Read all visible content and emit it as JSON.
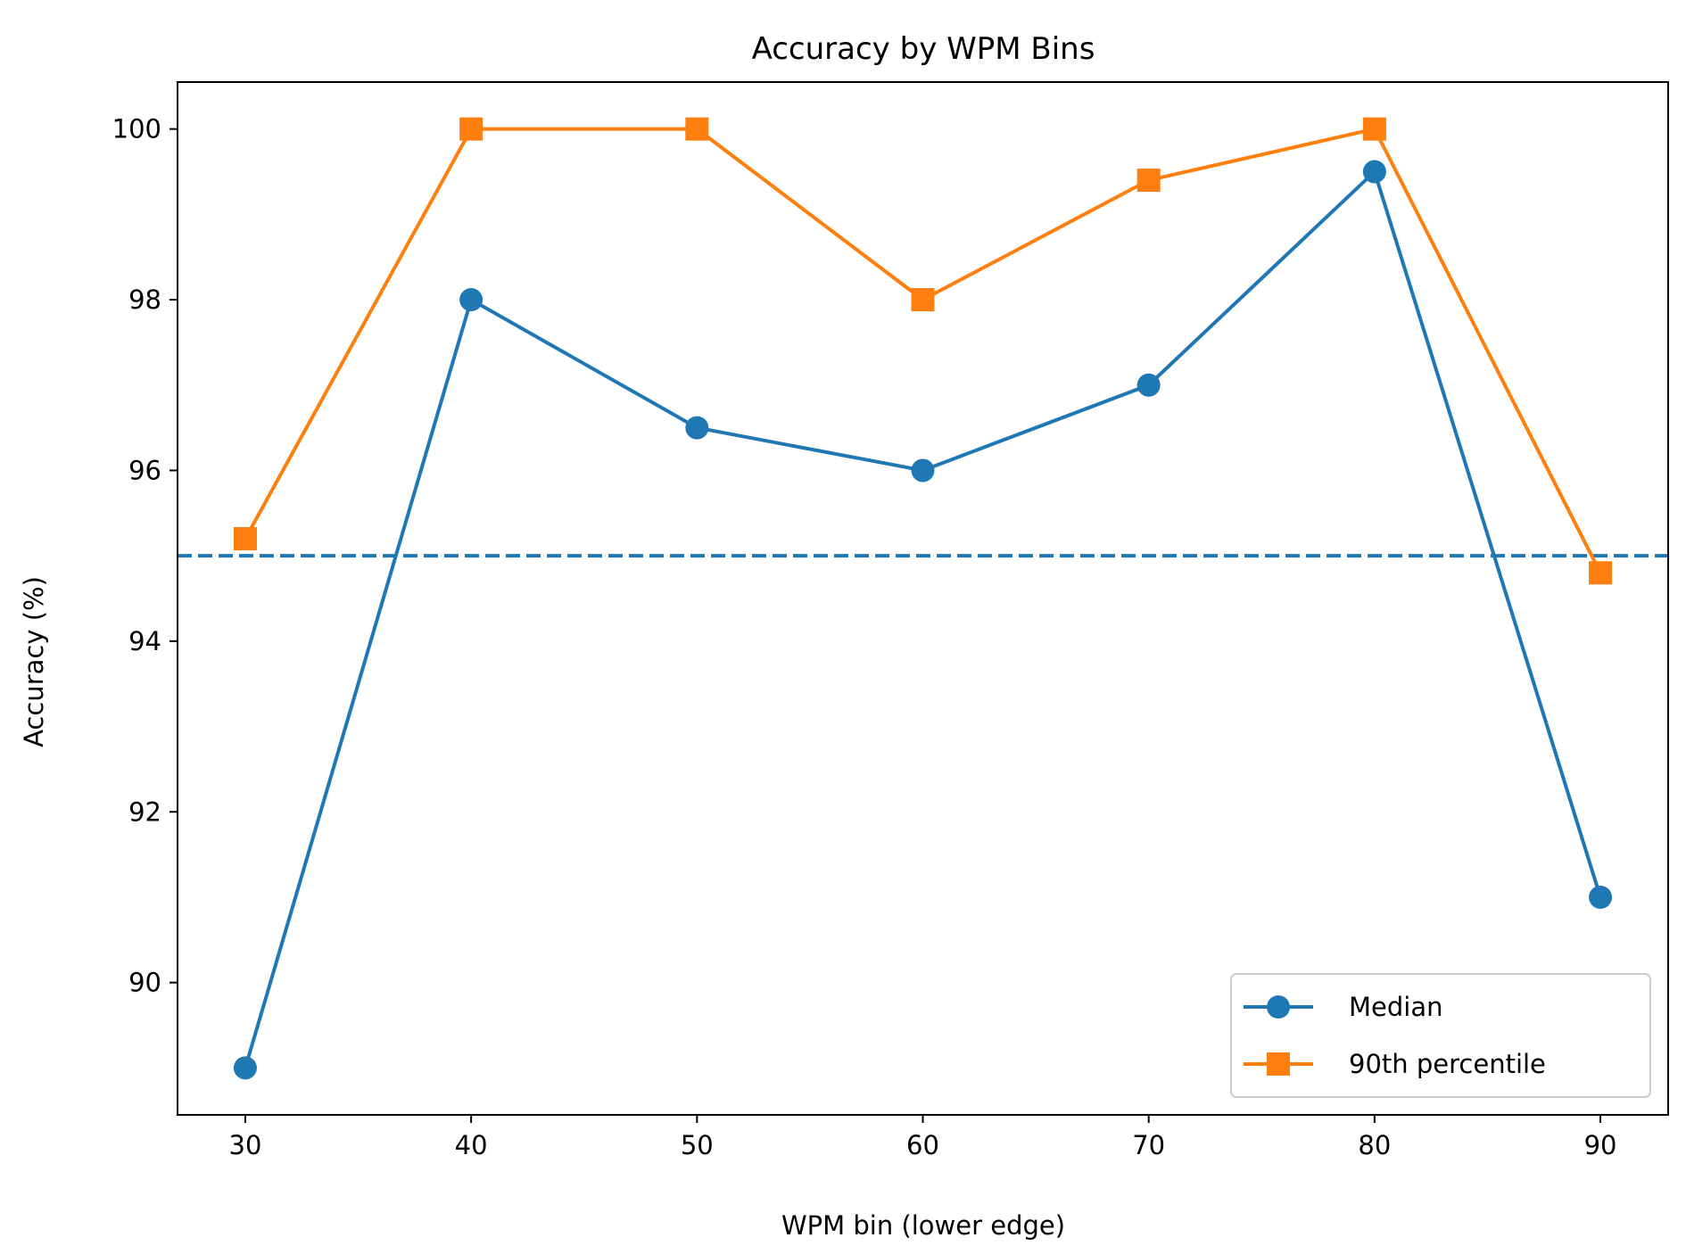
{
  "chart_data": {
    "type": "line",
    "title": "Accuracy by WPM Bins",
    "xlabel": "WPM bin (lower edge)",
    "ylabel": "Accuracy (%)",
    "x": [
      30,
      40,
      50,
      60,
      70,
      80,
      90
    ],
    "xlim": [
      27,
      93
    ],
    "ylim": [
      88.45,
      100.55
    ],
    "xticks": [
      30,
      40,
      50,
      60,
      70,
      80,
      90
    ],
    "yticks": [
      90,
      92,
      94,
      96,
      98,
      100
    ],
    "grid": false,
    "legend_position": "lower-right",
    "series": [
      {
        "name": "Median",
        "values": [
          89,
          98,
          96.5,
          96,
          97,
          99.5,
          91
        ],
        "color": "#1f77b4",
        "marker": "circle"
      },
      {
        "name": "90th percentile",
        "values": [
          95.2,
          100,
          100,
          98,
          99.4,
          100,
          94.8
        ],
        "color": "#ff7f0e",
        "marker": "square"
      }
    ],
    "reference_line": {
      "y": 95,
      "color": "#1f77b4",
      "style": "dashed"
    }
  }
}
